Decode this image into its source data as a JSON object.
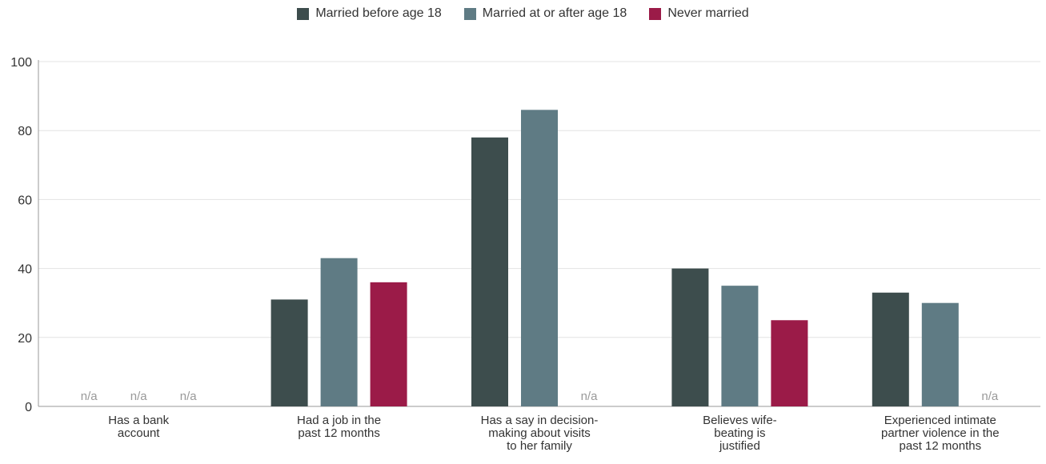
{
  "chart_data": {
    "type": "bar",
    "categories": [
      [
        "Has a bank",
        "account"
      ],
      [
        "Had a job in the",
        "past 12 months"
      ],
      [
        "Has a say in decision-",
        "making about visits",
        "to her family"
      ],
      [
        "Believes wife-",
        "beating is",
        "justified"
      ],
      [
        "Experienced intimate",
        "partner violence in the",
        "past 12 months"
      ]
    ],
    "series": [
      {
        "name": "Married before age 18",
        "color": "#3d4d4d",
        "values": [
          null,
          31,
          78,
          40,
          33
        ]
      },
      {
        "name": "Married at or after age 18",
        "color": "#5f7b84",
        "values": [
          null,
          43,
          86,
          35,
          30
        ]
      },
      {
        "name": "Never married",
        "color": "#9b1b48",
        "values": [
          null,
          36,
          null,
          25,
          null
        ]
      }
    ],
    "na_label": "n/a",
    "ylim": [
      0,
      100
    ],
    "yticks": [
      0,
      20,
      40,
      60,
      80,
      100
    ],
    "grid": true,
    "legend_position": "top-center"
  }
}
